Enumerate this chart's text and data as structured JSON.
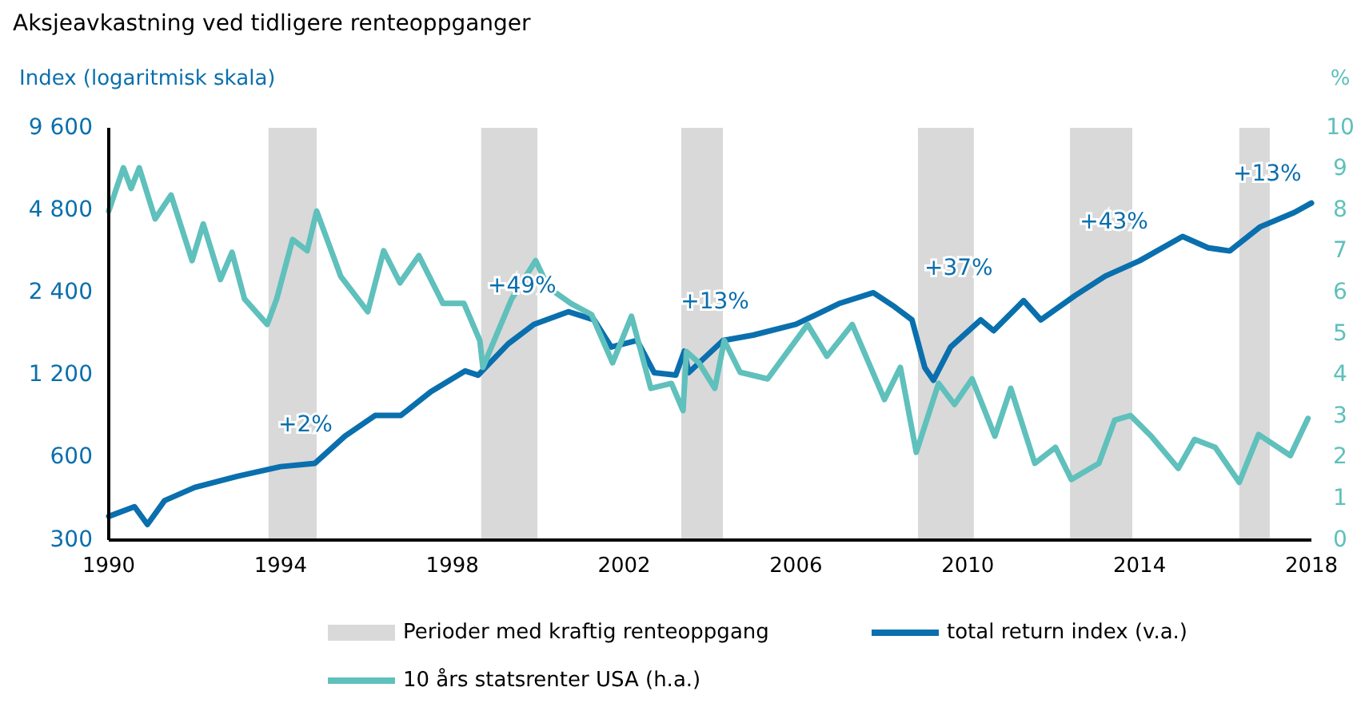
{
  "chart_data": {
    "type": "line",
    "title": "Aksjeavkastning ved tidligere renteoppganger",
    "ylabel": "Index (logaritmisk skala)",
    "y2label": "%",
    "xlim": [
      1990,
      2018
    ],
    "xticks": [
      1990,
      1994,
      1998,
      2002,
      2006,
      2010,
      2014,
      2018
    ],
    "ylim": [
      300,
      9600
    ],
    "yticks": [
      {
        "value": 300,
        "label": "300"
      },
      {
        "value": 600,
        "label": "600"
      },
      {
        "value": 1200,
        "label": "1 200"
      },
      {
        "value": 2400,
        "label": "2 400"
      },
      {
        "value": 4800,
        "label": "4 800"
      },
      {
        "value": 9600,
        "label": "9 600"
      }
    ],
    "y2lim": [
      0,
      10
    ],
    "y2ticks": [
      0,
      1,
      2,
      3,
      4,
      5,
      6,
      7,
      8,
      9,
      10
    ],
    "log": "y",
    "grid": false,
    "legend": "bottom",
    "line_style": "solid",
    "marker": "none",
    "bands": [
      {
        "axis": "x",
        "from": 1993.72,
        "to": 1994.84,
        "label": "Perioder med kraftig renteoppgang",
        "color": "#d9d9d9"
      },
      {
        "axis": "x",
        "from": 1998.67,
        "to": 1999.98,
        "color": "#d9d9d9"
      },
      {
        "axis": "x",
        "from": 2003.33,
        "to": 2004.3,
        "color": "#d9d9d9"
      },
      {
        "axis": "x",
        "from": 2008.84,
        "to": 2010.14,
        "color": "#d9d9d9"
      },
      {
        "axis": "x",
        "from": 2012.38,
        "to": 2013.83,
        "color": "#d9d9d9"
      },
      {
        "axis": "x",
        "from": 2016.32,
        "to": 2017.03,
        "color": "#d9d9d9"
      }
    ],
    "annotations": [
      "+2%",
      "+49%",
      "+13%",
      "+37%",
      "+43%",
      "+13%"
    ],
    "series": [
      {
        "name": "total return index (v.a.)",
        "color": "#0a6fad",
        "x": [
          1990.0,
          1990.6,
          1990.9,
          1991.3,
          1992.0,
          1993.0,
          1994.0,
          1994.8,
          1995.5,
          1996.2,
          1996.8,
          1997.5,
          1998.3,
          1998.6,
          1999.3,
          1999.9,
          2000.7,
          2001.3,
          2001.7,
          2002.3,
          2002.7,
          2003.2,
          2003.4,
          2003.5,
          2004.3,
          2005.0,
          2006.0,
          2007.0,
          2007.8,
          2008.3,
          2008.7,
          2009.0,
          2009.2,
          2009.6,
          2010.3,
          2010.6,
          2011.3,
          2011.7,
          2012.5,
          2013.2,
          2014.0,
          2015.0,
          2015.6,
          2016.1,
          2016.8,
          2017.6,
          2018.0
        ],
        "values": [
          366,
          397,
          342,
          418,
          467,
          513,
          556,
          572,
          719,
          855,
          855,
          1045,
          1243,
          1200,
          1562,
          1840,
          2046,
          1910,
          1520,
          1606,
          1225,
          1200,
          1467,
          1225,
          1606,
          1680,
          1840,
          2190,
          2400,
          2130,
          1910,
          1277,
          1150,
          1520,
          1910,
          1744,
          2245,
          1910,
          2345,
          2760,
          3140,
          3850,
          3500,
          3410,
          4170,
          4710,
          5100
        ]
      },
      {
        "name": "10 års statsrenter USA (h.a.)",
        "color": "#5fc0bc",
        "axis": "y2",
        "x": [
          1990.0,
          1990.34,
          1990.52,
          1990.71,
          1991.08,
          1991.45,
          1991.94,
          1992.2,
          1992.6,
          1992.87,
          1993.16,
          1993.69,
          1993.91,
          1994.28,
          1994.62,
          1994.84,
          1995.4,
          1996.03,
          1996.4,
          1996.78,
          1997.22,
          1997.78,
          1998.27,
          1998.64,
          1998.71,
          1999.38,
          1999.94,
          2000.24,
          2000.76,
          2001.24,
          2001.73,
          2002.17,
          2002.62,
          2003.1,
          2003.37,
          2003.45,
          2003.74,
          2004.11,
          2004.33,
          2004.7,
          2005.34,
          2006.27,
          2006.72,
          2007.31,
          2008.06,
          2008.43,
          2008.8,
          2009.32,
          2009.69,
          2010.1,
          2010.63,
          2011.0,
          2011.56,
          2012.04,
          2012.41,
          2013.05,
          2013.42,
          2013.79,
          2014.27,
          2014.9,
          2015.28,
          2015.76,
          2016.32,
          2016.77,
          2017.51,
          2017.92
        ],
        "values": [
          7.98,
          9.03,
          8.53,
          9.03,
          7.79,
          8.37,
          6.78,
          7.67,
          6.32,
          6.98,
          5.85,
          5.23,
          5.85,
          7.29,
          7.02,
          7.98,
          6.4,
          5.54,
          7.02,
          6.24,
          6.9,
          5.74,
          5.74,
          4.84,
          4.19,
          5.85,
          6.78,
          6.12,
          5.74,
          5.47,
          4.3,
          5.43,
          3.68,
          3.8,
          3.14,
          4.57,
          4.3,
          3.68,
          4.84,
          4.07,
          3.91,
          5.23,
          4.46,
          5.23,
          3.41,
          4.19,
          2.13,
          3.8,
          3.29,
          3.91,
          2.52,
          3.68,
          1.86,
          2.25,
          1.47,
          1.86,
          2.91,
          3.02,
          2.52,
          1.74,
          2.44,
          2.25,
          1.4,
          2.56,
          2.05,
          2.95
        ]
      }
    ]
  }
}
